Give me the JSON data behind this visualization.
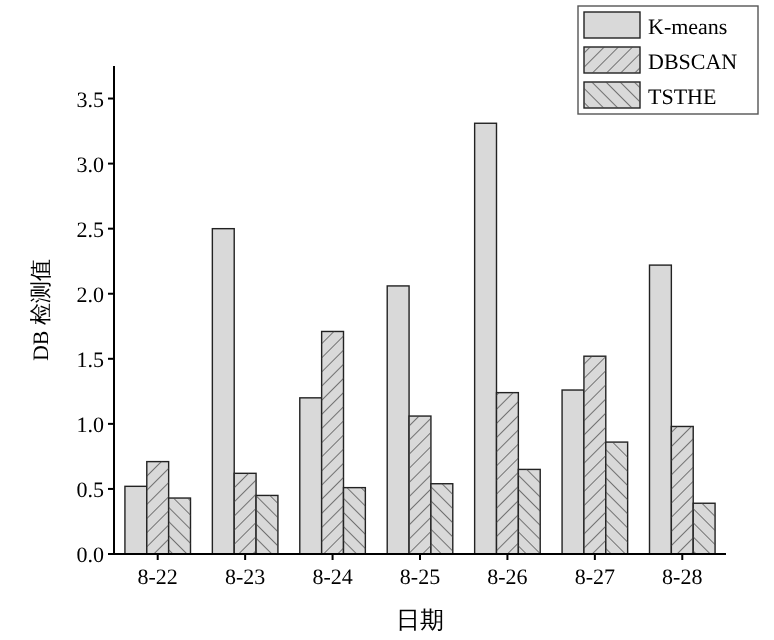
{
  "chart_data": {
    "type": "bar",
    "xlabel": "日期",
    "ylabel": "DB 检测值",
    "categories": [
      "8-22",
      "8-23",
      "8-24",
      "8-25",
      "8-26",
      "8-27",
      "8-28"
    ],
    "series": [
      {
        "name": "K-means",
        "color": "#d9d9d9",
        "values": [
          0.52,
          2.5,
          1.2,
          2.06,
          3.31,
          1.26,
          2.22
        ]
      },
      {
        "name": "DBSCAN",
        "color": "#d9d9d9",
        "values": [
          0.71,
          0.62,
          1.71,
          1.06,
          1.24,
          1.52,
          0.98
        ]
      },
      {
        "name": "TSTHE",
        "color": "#d9d9d9",
        "values": [
          0.43,
          0.45,
          0.51,
          0.54,
          0.65,
          0.86,
          0.39
        ]
      }
    ],
    "ylim": [
      0,
      3.75
    ],
    "yticks": [
      {
        "value": 0,
        "label": "0.0"
      },
      {
        "value": 0.5,
        "label": "0.5"
      },
      {
        "value": 1,
        "label": "1.0"
      },
      {
        "value": 1.5,
        "label": "1.5"
      },
      {
        "value": 2,
        "label": "2.0"
      },
      {
        "value": 2.5,
        "label": "2.5"
      },
      {
        "value": 3,
        "label": "3.0"
      },
      {
        "value": 3.5,
        "label": "3.5"
      }
    ],
    "legend": "top right",
    "grid": false
  }
}
